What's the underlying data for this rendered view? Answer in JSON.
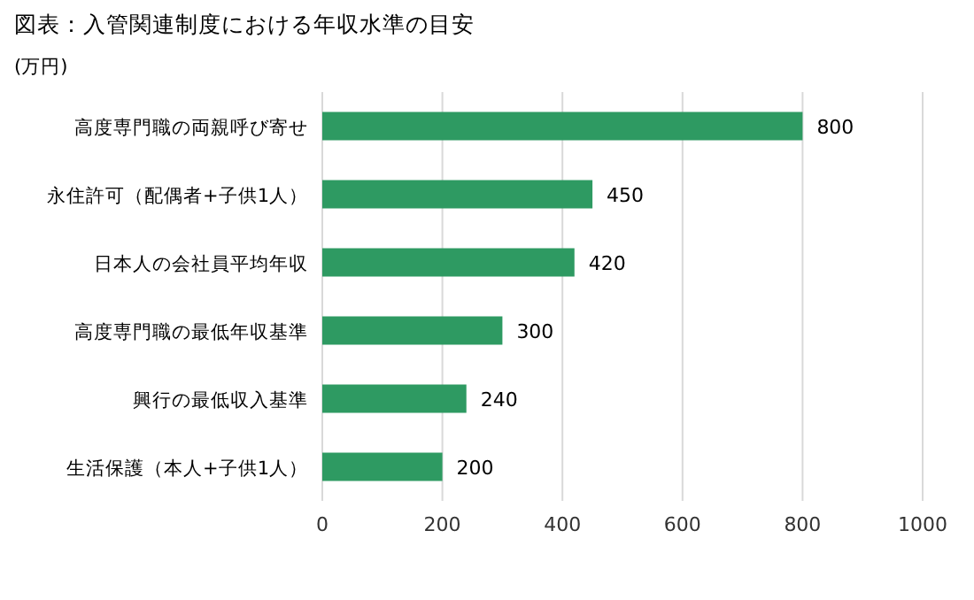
{
  "chart_data": {
    "type": "bar",
    "orientation": "horizontal",
    "title": "図表：入管関連制度における年収水準の目安",
    "subtitle": "(万円)",
    "categories": [
      "高度専門職の両親呼び寄せ",
      "永住許可（配偶者+子供1人）",
      "日本人の会社員平均年収",
      "高度専門職の最低年収基準",
      "興行の最低収入基準",
      "生活保護（本人+子供1人）"
    ],
    "values": [
      800,
      450,
      420,
      300,
      240,
      200
    ],
    "color": "#2e9a62",
    "xlim": [
      0,
      1000
    ],
    "xticks": [
      0,
      200,
      400,
      600,
      800,
      1000
    ],
    "grid": "x",
    "data_labels": true
  }
}
